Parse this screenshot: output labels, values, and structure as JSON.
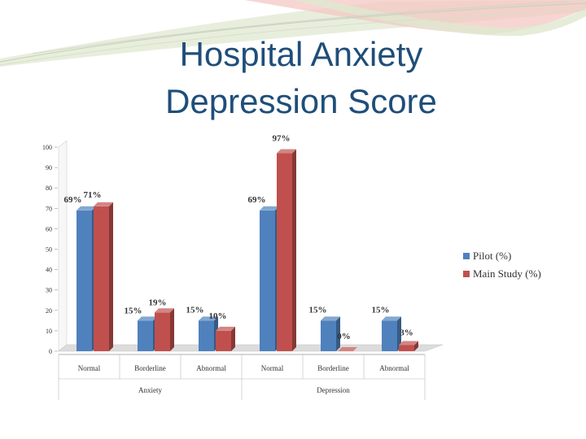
{
  "slide": {
    "title_line1": "Hospital Anxiety",
    "title_line2": "Depression Score"
  },
  "colors": {
    "pilot": "#4f81bd",
    "main_study": "#c0504d",
    "title": "#1f4e79"
  },
  "chart_data": {
    "type": "bar",
    "categories": [
      "Normal",
      "Borderline",
      "Abnormal",
      "Normal",
      "Borderline",
      "Abnormal"
    ],
    "groups": [
      {
        "label": "Anxiety",
        "categories": [
          "Normal",
          "Borderline",
          "Abnormal"
        ]
      },
      {
        "label": "Depression",
        "categories": [
          "Normal",
          "Borderline",
          "Abnormal"
        ]
      }
    ],
    "series": [
      {
        "name": "Pilot (%)",
        "values": [
          69,
          15,
          15,
          69,
          15,
          15
        ],
        "labels": [
          "69%",
          "15%",
          "15%",
          "69%",
          "15%",
          "15%"
        ]
      },
      {
        "name": "Main Study (%)",
        "values": [
          71,
          19,
          10,
          97,
          0,
          3
        ],
        "labels": [
          "71%",
          "19%",
          "10%",
          "97%",
          "0%",
          "3%"
        ]
      }
    ],
    "yticks": [
      0,
      10,
      20,
      30,
      40,
      50,
      60,
      70,
      80,
      90,
      100
    ],
    "ylim": [
      0,
      100
    ],
    "grid": false,
    "legend": "right",
    "style": "3d-clustered-column"
  }
}
